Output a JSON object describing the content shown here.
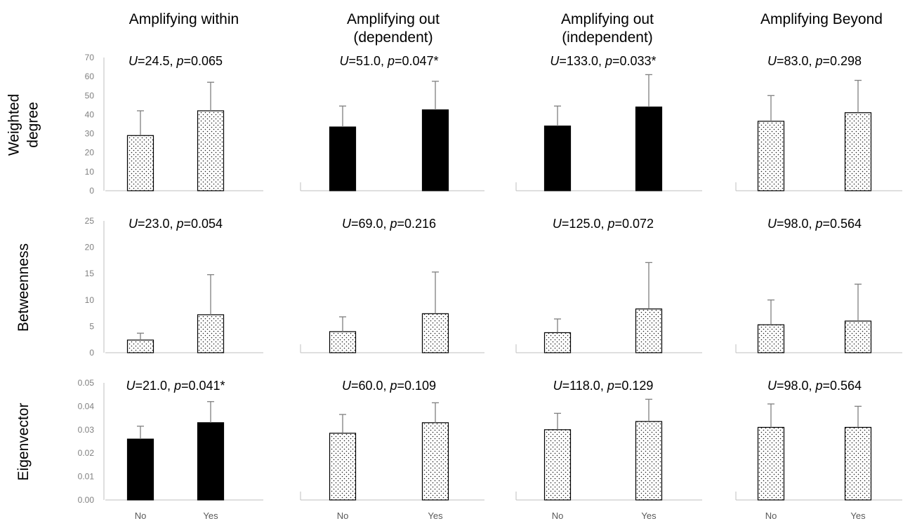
{
  "columns": [
    {
      "title_lines": [
        "Amplifying  within"
      ]
    },
    {
      "title_lines": [
        "Amplifying  out",
        "(dependent)"
      ]
    },
    {
      "title_lines": [
        "Amplifying  out",
        "(independent)"
      ]
    },
    {
      "title_lines": [
        "Amplifying  Beyond"
      ]
    }
  ],
  "row_labels": [
    [
      "Weighted",
      "degree"
    ],
    [
      "Betweenness"
    ],
    [
      "Eigenvector"
    ]
  ],
  "colors": {
    "significant_fill": "#000000",
    "nonsignificant_fill": "dotted-pattern",
    "axis": "#bfbfbf",
    "error_bar": "#7f7f7f"
  },
  "chart_data": [
    {
      "type": "bar",
      "metric": "Weighted degree",
      "group": "Amplifying within",
      "categories": [
        "No",
        "Yes"
      ],
      "values": [
        29,
        42
      ],
      "errors": [
        13,
        15
      ],
      "stat": {
        "U": "24.5",
        "p": "0.065",
        "sig": false
      },
      "ylim": [
        0,
        70
      ],
      "yticks": [
        "0",
        "10",
        "20",
        "30",
        "40",
        "50",
        "60",
        "70"
      ],
      "show_yaxis": true
    },
    {
      "type": "bar",
      "metric": "Weighted degree",
      "group": "Amplifying out (dependent)",
      "categories": [
        "No",
        "Yes"
      ],
      "values": [
        33.5,
        42.5
      ],
      "errors": [
        11,
        15
      ],
      "stat": {
        "U": "51.0",
        "p": "0.047*",
        "sig": true
      },
      "ylim": [
        0,
        70
      ],
      "yticks": [],
      "show_yaxis": false
    },
    {
      "type": "bar",
      "metric": "Weighted degree",
      "group": "Amplifying out (independent)",
      "categories": [
        "No",
        "Yes"
      ],
      "values": [
        34,
        44
      ],
      "errors": [
        10.5,
        17
      ],
      "stat": {
        "U": "133.0",
        "p": "0.033*",
        "sig": true
      },
      "ylim": [
        0,
        70
      ],
      "yticks": [],
      "show_yaxis": false
    },
    {
      "type": "bar",
      "metric": "Weighted degree",
      "group": "Amplifying Beyond",
      "categories": [
        "No",
        "Yes"
      ],
      "values": [
        36.5,
        41
      ],
      "errors": [
        13.5,
        17
      ],
      "stat": {
        "U": "83.0",
        "p": "0.298",
        "sig": false
      },
      "ylim": [
        0,
        70
      ],
      "yticks": [],
      "show_yaxis": false
    },
    {
      "type": "bar",
      "metric": "Betweenness",
      "group": "Amplifying within",
      "categories": [
        "No",
        "Yes"
      ],
      "values": [
        2.4,
        7.2
      ],
      "errors": [
        1.3,
        7.6
      ],
      "stat": {
        "U": "23.0",
        "p": "0.054",
        "sig": false
      },
      "ylim": [
        0,
        25
      ],
      "yticks": [
        "0",
        "5",
        "10",
        "15",
        "20",
        "25"
      ],
      "show_yaxis": true
    },
    {
      "type": "bar",
      "metric": "Betweenness",
      "group": "Amplifying out (dependent)",
      "categories": [
        "No",
        "Yes"
      ],
      "values": [
        4.0,
        7.4
      ],
      "errors": [
        2.8,
        7.9
      ],
      "stat": {
        "U": "69.0",
        "p": "0.216",
        "sig": false
      },
      "ylim": [
        0,
        25
      ],
      "yticks": [],
      "show_yaxis": false
    },
    {
      "type": "bar",
      "metric": "Betweenness",
      "group": "Amplifying out (independent)",
      "categories": [
        "No",
        "Yes"
      ],
      "values": [
        3.8,
        8.3
      ],
      "errors": [
        2.6,
        8.8
      ],
      "stat": {
        "U": "125.0",
        "p": "0.072",
        "sig": false
      },
      "ylim": [
        0,
        25
      ],
      "yticks": [],
      "show_yaxis": false
    },
    {
      "type": "bar",
      "metric": "Betweenness",
      "group": "Amplifying Beyond",
      "categories": [
        "No",
        "Yes"
      ],
      "values": [
        5.3,
        6.0
      ],
      "errors": [
        4.7,
        7.0
      ],
      "stat": {
        "U": "98.0",
        "p": "0.564",
        "sig": false
      },
      "ylim": [
        0,
        25
      ],
      "yticks": [],
      "show_yaxis": false
    },
    {
      "type": "bar",
      "metric": "Eigenvector",
      "group": "Amplifying within",
      "categories": [
        "No",
        "Yes"
      ],
      "values": [
        0.026,
        0.033
      ],
      "errors": [
        0.0055,
        0.009
      ],
      "stat": {
        "U": "21.0",
        "p": "0.041*",
        "sig": true
      },
      "ylim": [
        0,
        0.05
      ],
      "yticks": [
        "0.00",
        "0.01",
        "0.02",
        "0.03",
        "0.04",
        "0.05"
      ],
      "show_yaxis": true
    },
    {
      "type": "bar",
      "metric": "Eigenvector",
      "group": "Amplifying out (dependent)",
      "categories": [
        "No",
        "Yes"
      ],
      "values": [
        0.0285,
        0.033
      ],
      "errors": [
        0.008,
        0.0085
      ],
      "stat": {
        "U": "60.0",
        "p": "0.109",
        "sig": false
      },
      "ylim": [
        0,
        0.05
      ],
      "yticks": [],
      "show_yaxis": false
    },
    {
      "type": "bar",
      "metric": "Eigenvector",
      "group": "Amplifying out (independent)",
      "categories": [
        "No",
        "Yes"
      ],
      "values": [
        0.03,
        0.0335
      ],
      "errors": [
        0.007,
        0.0095
      ],
      "stat": {
        "U": "118.0",
        "p": "0.129",
        "sig": false
      },
      "ylim": [
        0,
        0.05
      ],
      "yticks": [],
      "show_yaxis": false
    },
    {
      "type": "bar",
      "metric": "Eigenvector",
      "group": "Amplifying Beyond",
      "categories": [
        "No",
        "Yes"
      ],
      "values": [
        0.031,
        0.031
      ],
      "errors": [
        0.01,
        0.009
      ],
      "stat": {
        "U": "98.0",
        "p": "0.564",
        "sig": false
      },
      "ylim": [
        0,
        0.05
      ],
      "yticks": [],
      "show_yaxis": false
    }
  ]
}
